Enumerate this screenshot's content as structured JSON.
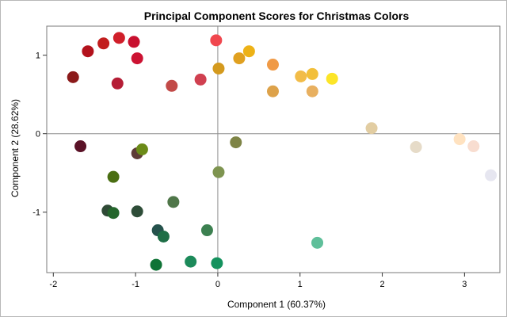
{
  "chart_data": {
    "type": "scatter",
    "title": "Principal Component Scores for Christmas Colors",
    "xlabel": "Component 1 (60.37%)",
    "ylabel": "Component 2 (28.62%)",
    "xlim": [
      -2.08,
      3.43
    ],
    "ylim": [
      -1.77,
      1.37
    ],
    "xticks": [
      -2,
      -1,
      0,
      1,
      2,
      3
    ],
    "yticks": [
      -1,
      0,
      1
    ],
    "reference_lines": {
      "x": 0,
      "y": 0
    },
    "grid": false,
    "legend": "none",
    "points": [
      {
        "x": -1.76,
        "y": 0.72,
        "color": "#8B1A1A"
      },
      {
        "x": -1.58,
        "y": 1.05,
        "color": "#B3121C"
      },
      {
        "x": -1.39,
        "y": 1.15,
        "color": "#C21E1E"
      },
      {
        "x": -1.2,
        "y": 1.22,
        "color": "#D01F2A"
      },
      {
        "x": -1.02,
        "y": 1.17,
        "color": "#C8102E"
      },
      {
        "x": -0.98,
        "y": 0.96,
        "color": "#CC1232"
      },
      {
        "x": -1.22,
        "y": 0.64,
        "color": "#B51D36"
      },
      {
        "x": -0.56,
        "y": 0.61,
        "color": "#C24A48"
      },
      {
        "x": -0.21,
        "y": 0.69,
        "color": "#D04050"
      },
      {
        "x": -0.02,
        "y": 1.19,
        "color": "#F0474E"
      },
      {
        "x": 0.01,
        "y": 0.83,
        "color": "#D49A1E"
      },
      {
        "x": 0.26,
        "y": 0.96,
        "color": "#E0A020"
      },
      {
        "x": 0.38,
        "y": 1.05,
        "color": "#EDB217"
      },
      {
        "x": 0.67,
        "y": 0.88,
        "color": "#F09A46"
      },
      {
        "x": 0.67,
        "y": 0.54,
        "color": "#DDA24A"
      },
      {
        "x": 1.01,
        "y": 0.73,
        "color": "#F2BC48"
      },
      {
        "x": 1.15,
        "y": 0.76,
        "color": "#F2BF3A"
      },
      {
        "x": 1.15,
        "y": 0.54,
        "color": "#E8B060"
      },
      {
        "x": 1.39,
        "y": 0.7,
        "color": "#FCE528"
      },
      {
        "x": 1.87,
        "y": 0.07,
        "color": "#E2CDA2"
      },
      {
        "x": 2.41,
        "y": -0.17,
        "color": "#E6DBC8"
      },
      {
        "x": 2.94,
        "y": -0.07,
        "color": "#FFE2C0"
      },
      {
        "x": 3.11,
        "y": -0.16,
        "color": "#F8DDD0"
      },
      {
        "x": 3.32,
        "y": -0.53,
        "color": "#E6E6F0"
      },
      {
        "x": -1.67,
        "y": -0.16,
        "color": "#5A1227"
      },
      {
        "x": -0.98,
        "y": -0.25,
        "color": "#5E3C36"
      },
      {
        "x": -0.92,
        "y": -0.2,
        "color": "#6B8A17"
      },
      {
        "x": -1.27,
        "y": -0.55,
        "color": "#4A6E12"
      },
      {
        "x": 0.22,
        "y": -0.11,
        "color": "#7E8446"
      },
      {
        "x": 0.01,
        "y": -0.49,
        "color": "#7E9450"
      },
      {
        "x": -1.34,
        "y": -0.98,
        "color": "#2F4A36"
      },
      {
        "x": -1.27,
        "y": -1.01,
        "color": "#24662C"
      },
      {
        "x": -0.98,
        "y": -0.99,
        "color": "#2E4D38"
      },
      {
        "x": -0.54,
        "y": -0.87,
        "color": "#4F7649"
      },
      {
        "x": -0.73,
        "y": -1.23,
        "color": "#25524C"
      },
      {
        "x": -0.66,
        "y": -1.31,
        "color": "#1E6E46"
      },
      {
        "x": -0.13,
        "y": -1.23,
        "color": "#3C8050"
      },
      {
        "x": -0.75,
        "y": -1.67,
        "color": "#0F7336"
      },
      {
        "x": -0.33,
        "y": -1.63,
        "color": "#1C8A5A"
      },
      {
        "x": -0.01,
        "y": -1.65,
        "color": "#14925E"
      },
      {
        "x": 1.21,
        "y": -1.39,
        "color": "#5FBF9A"
      }
    ]
  }
}
